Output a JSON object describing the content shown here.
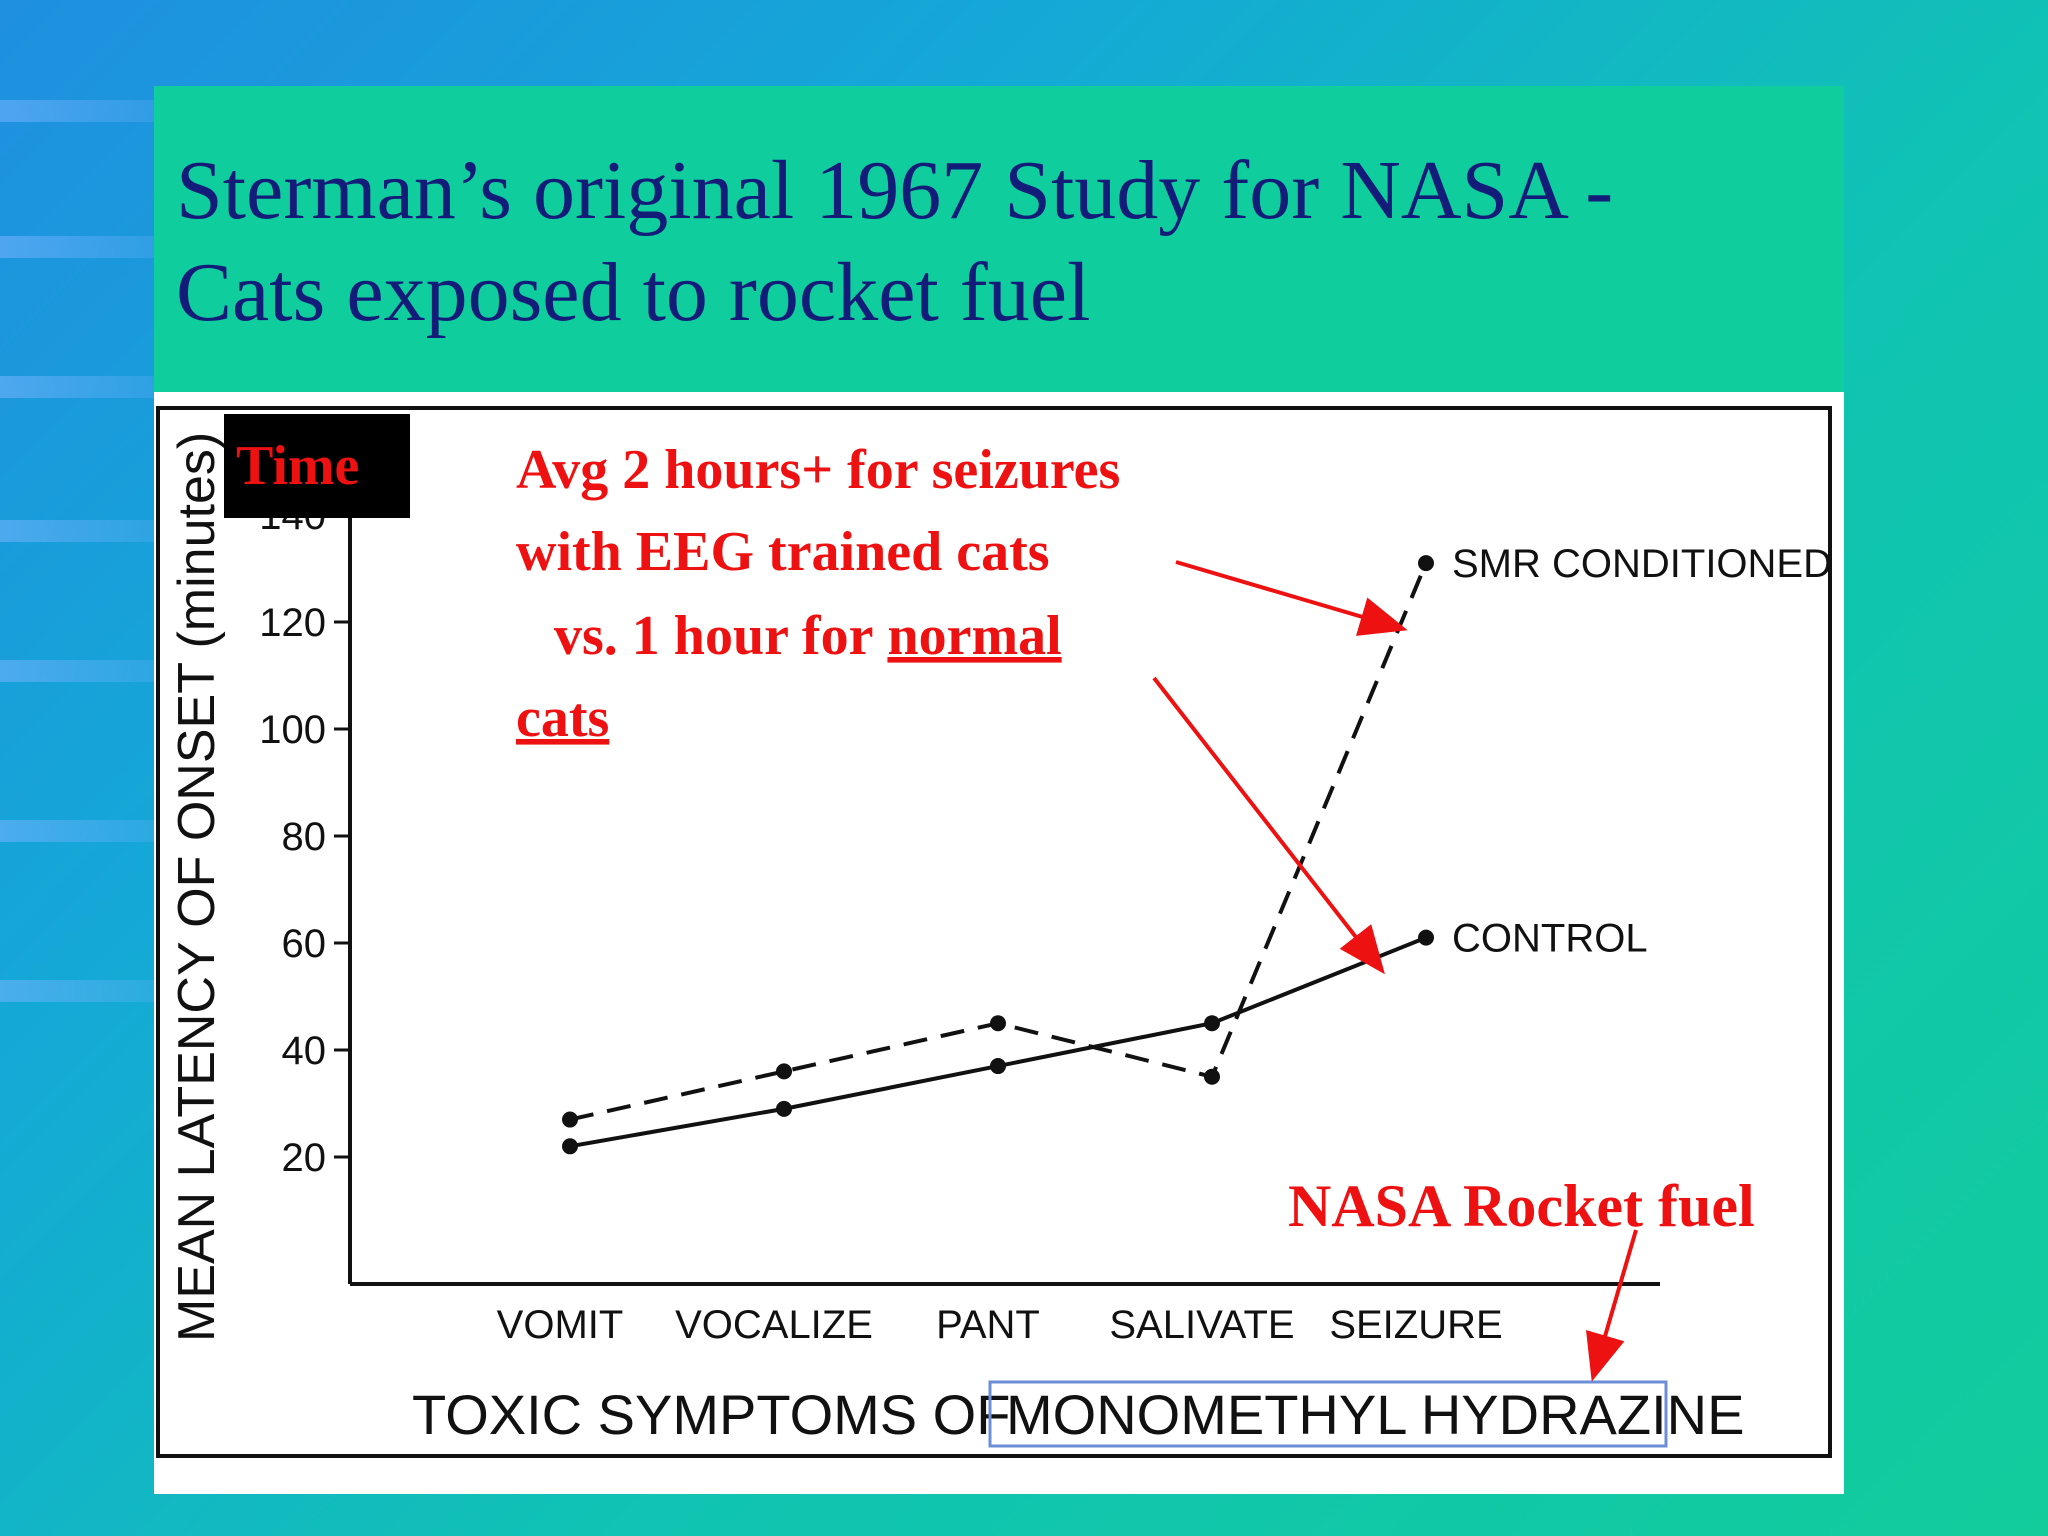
{
  "slide": {
    "title_line1": "Sterman’s original 1967 Study for NASA -",
    "title_line2": "Cats exposed to rocket fuel",
    "colors": {
      "background": "#12cc9c",
      "title": "#141c7a",
      "annotation": "#ee1111"
    }
  },
  "chart_data": {
    "type": "line",
    "categories": [
      "VOMIT",
      "VOCALIZE",
      "PANT",
      "SALIVATE",
      "SEIZURE"
    ],
    "series": [
      {
        "name": "SMR CONDITIONED",
        "style": "dashed",
        "values": [
          27,
          36,
          45,
          35,
          131
        ]
      },
      {
        "name": "CONTROL",
        "style": "solid",
        "values": [
          22,
          29,
          37,
          45,
          61
        ]
      }
    ],
    "ylabel": "MEAN LATENCY OF ONSET (minutes)",
    "xlabel_prefix": "TOXIC SYMPTOMS OF",
    "xlabel_highlight": "MONOMETHYL HYDRAZINE",
    "yticks": [
      20,
      40,
      60,
      80,
      100,
      120,
      140
    ],
    "ylim": [
      0,
      150
    ],
    "grid": false
  },
  "annotations": {
    "time_badge": "Time",
    "main_line1": "Avg 2 hours+ for seizures",
    "main_line2": "with EEG trained cats",
    "main_line3_prefix": "vs. 1 hour for",
    "main_line3_underlined": "normal",
    "main_line4": "cats",
    "fuel": "NASA Rocket fuel"
  }
}
